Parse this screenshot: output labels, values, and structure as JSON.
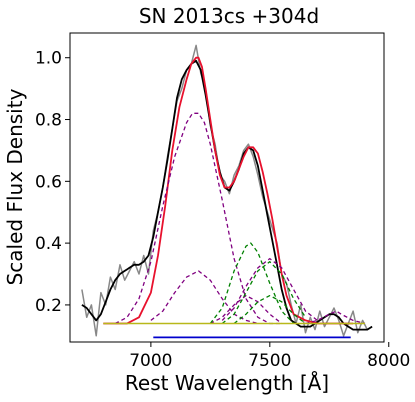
{
  "chart_data": {
    "type": "line",
    "title": "SN 2013cs  +304d",
    "xlabel": "Rest Wavelength [Å]",
    "ylabel": "Scaled Flux Density",
    "xlim": [
      6660,
      7980
    ],
    "ylim": [
      0.08,
      1.08
    ],
    "xticks": [
      7000,
      7500,
      8000
    ],
    "xtick_labels": [
      "7000",
      "7500",
      "8000"
    ],
    "yticks": [
      0.2,
      0.4,
      0.6,
      0.8,
      1.0
    ],
    "ytick_labels": [
      "0.2",
      "0.4",
      "0.6",
      "0.8",
      "1.0"
    ],
    "grid": false,
    "colors": {
      "raw": "#888888",
      "smoothed": "#000000",
      "fit": "#e8112d",
      "component_purple": "#800080",
      "component_green": "#008000",
      "continuum": "#b8b81a",
      "baseline_bar": "#0000cc"
    },
    "series": [
      {
        "style": "raw",
        "x": [
          6710,
          6730,
          6750,
          6770,
          6790,
          6810,
          6830,
          6850,
          6870,
          6890,
          6910,
          6930,
          6950,
          6970,
          6990,
          7010,
          7030,
          7050,
          7070,
          7090,
          7110,
          7130,
          7150,
          7170,
          7190,
          7210,
          7230,
          7250,
          7270,
          7290,
          7310,
          7330,
          7350,
          7370,
          7390,
          7410,
          7430,
          7450,
          7470,
          7490,
          7510,
          7530,
          7550,
          7570,
          7590,
          7610,
          7630,
          7650,
          7670,
          7690,
          7710,
          7730,
          7750,
          7770,
          7790,
          7810,
          7830,
          7850,
          7870,
          7890,
          7910,
          7930
        ],
        "y": [
          0.25,
          0.16,
          0.2,
          0.1,
          0.24,
          0.2,
          0.29,
          0.25,
          0.33,
          0.28,
          0.31,
          0.34,
          0.3,
          0.36,
          0.3,
          0.44,
          0.5,
          0.58,
          0.68,
          0.77,
          0.86,
          0.9,
          0.96,
          0.98,
          1.04,
          0.95,
          0.9,
          0.78,
          0.72,
          0.62,
          0.6,
          0.56,
          0.62,
          0.65,
          0.7,
          0.72,
          0.68,
          0.62,
          0.55,
          0.5,
          0.45,
          0.4,
          0.3,
          0.27,
          0.2,
          0.14,
          0.2,
          0.11,
          0.16,
          0.12,
          0.18,
          0.13,
          0.16,
          0.19,
          0.15,
          0.1,
          0.14,
          0.18,
          0.11,
          0.15,
          0.12,
          0.13
        ]
      },
      {
        "style": "smoothed",
        "x": [
          6710,
          6730,
          6750,
          6770,
          6790,
          6810,
          6830,
          6850,
          6870,
          6890,
          6910,
          6930,
          6950,
          6970,
          6990,
          7010,
          7030,
          7050,
          7070,
          7090,
          7110,
          7130,
          7150,
          7170,
          7190,
          7210,
          7230,
          7250,
          7270,
          7290,
          7310,
          7330,
          7350,
          7370,
          7390,
          7410,
          7430,
          7450,
          7470,
          7490,
          7510,
          7530,
          7550,
          7570,
          7590,
          7610,
          7630,
          7650,
          7670,
          7690,
          7710,
          7730,
          7750,
          7770,
          7790,
          7810,
          7830,
          7850,
          7870,
          7890,
          7910,
          7930
        ],
        "y": [
          0.2,
          0.19,
          0.17,
          0.15,
          0.17,
          0.21,
          0.25,
          0.28,
          0.3,
          0.31,
          0.32,
          0.33,
          0.33,
          0.34,
          0.36,
          0.42,
          0.5,
          0.58,
          0.67,
          0.77,
          0.87,
          0.93,
          0.96,
          0.98,
          0.99,
          0.96,
          0.88,
          0.79,
          0.7,
          0.63,
          0.58,
          0.57,
          0.6,
          0.64,
          0.69,
          0.71,
          0.7,
          0.65,
          0.57,
          0.49,
          0.41,
          0.33,
          0.25,
          0.19,
          0.15,
          0.14,
          0.13,
          0.13,
          0.13,
          0.14,
          0.15,
          0.16,
          0.17,
          0.17,
          0.16,
          0.14,
          0.13,
          0.12,
          0.12,
          0.12,
          0.12,
          0.13
        ]
      },
      {
        "style": "fit",
        "x": [
          6800,
          6850,
          6900,
          6950,
          7000,
          7030,
          7060,
          7090,
          7120,
          7150,
          7170,
          7190,
          7200,
          7215,
          7230,
          7250,
          7270,
          7290,
          7310,
          7330,
          7350,
          7370,
          7390,
          7410,
          7430,
          7450,
          7470,
          7490,
          7510,
          7530,
          7550,
          7570,
          7600,
          7650,
          7700,
          7750,
          7800,
          7850
        ],
        "y": [
          0.14,
          0.14,
          0.14,
          0.16,
          0.24,
          0.36,
          0.52,
          0.7,
          0.84,
          0.93,
          0.98,
          1.0,
          1.0,
          0.97,
          0.9,
          0.8,
          0.7,
          0.62,
          0.58,
          0.58,
          0.6,
          0.64,
          0.68,
          0.71,
          0.71,
          0.69,
          0.63,
          0.56,
          0.48,
          0.39,
          0.3,
          0.23,
          0.17,
          0.15,
          0.14,
          0.14,
          0.14,
          0.14
        ]
      },
      {
        "style": "component_purple",
        "x": [
          6850,
          6900,
          6950,
          7000,
          7050,
          7100,
          7150,
          7175,
          7200,
          7225,
          7250,
          7300,
          7350,
          7400,
          7450,
          7500,
          7550
        ],
        "y": [
          0.14,
          0.16,
          0.22,
          0.34,
          0.52,
          0.68,
          0.79,
          0.82,
          0.82,
          0.79,
          0.72,
          0.54,
          0.35,
          0.22,
          0.16,
          0.14,
          0.14
        ]
      },
      {
        "style": "component_purple",
        "x": [
          7000,
          7050,
          7100,
          7150,
          7200,
          7250,
          7300,
          7350,
          7400,
          7450
        ],
        "y": [
          0.15,
          0.18,
          0.24,
          0.29,
          0.31,
          0.28,
          0.22,
          0.17,
          0.15,
          0.14
        ]
      },
      {
        "style": "component_purple",
        "x": [
          7300,
          7350,
          7400,
          7450,
          7500,
          7550,
          7600,
          7650,
          7700
        ],
        "y": [
          0.15,
          0.19,
          0.26,
          0.32,
          0.35,
          0.32,
          0.25,
          0.18,
          0.15
        ]
      },
      {
        "style": "component_purple",
        "x": [
          7250,
          7300,
          7350,
          7400,
          7450,
          7500,
          7550
        ],
        "y": [
          0.14,
          0.16,
          0.2,
          0.23,
          0.21,
          0.17,
          0.14
        ]
      },
      {
        "style": "component_purple",
        "x": [
          7650,
          7700,
          7750,
          7780,
          7800,
          7850,
          7900
        ],
        "y": [
          0.14,
          0.15,
          0.17,
          0.18,
          0.17,
          0.15,
          0.14
        ]
      },
      {
        "style": "component_green",
        "x": [
          7250,
          7300,
          7350,
          7400,
          7420,
          7450,
          7500,
          7550,
          7600
        ],
        "y": [
          0.14,
          0.19,
          0.31,
          0.39,
          0.4,
          0.37,
          0.27,
          0.18,
          0.14
        ]
      },
      {
        "style": "component_green",
        "x": [
          7300,
          7350,
          7400,
          7450,
          7500,
          7550,
          7600,
          7650
        ],
        "y": [
          0.14,
          0.17,
          0.24,
          0.31,
          0.34,
          0.3,
          0.22,
          0.16
        ]
      },
      {
        "style": "component_green",
        "x": [
          7350,
          7400,
          7450,
          7500,
          7550,
          7600,
          7650
        ],
        "y": [
          0.14,
          0.17,
          0.21,
          0.23,
          0.21,
          0.17,
          0.14
        ]
      },
      {
        "style": "continuum",
        "x": [
          6800,
          7900
        ],
        "y": [
          0.14,
          0.14
        ]
      },
      {
        "style": "baseline_bar",
        "x": [
          7010,
          7840
        ],
        "y": [
          0.095,
          0.095
        ]
      }
    ]
  }
}
